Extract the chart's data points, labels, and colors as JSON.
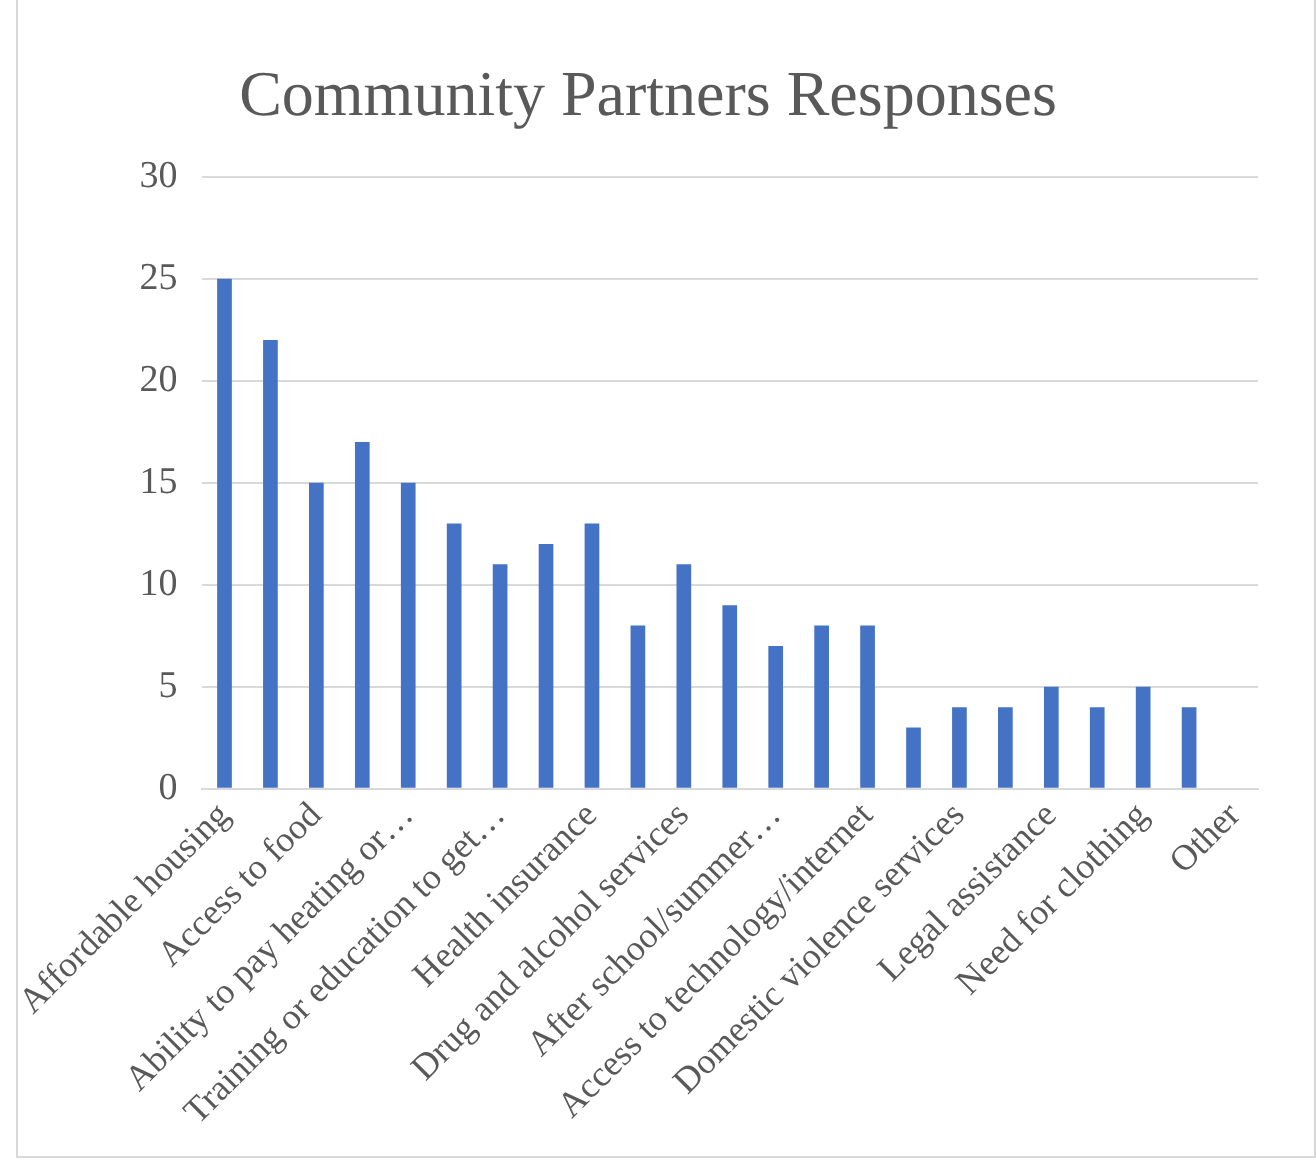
{
  "chart_data": {
    "type": "bar",
    "title": "Community Partners Responses",
    "categories": [
      "Affordable housing",
      null,
      "Access to food",
      null,
      "Ability to pay heating or…",
      null,
      "Training or education to get…",
      null,
      "Health insurance",
      null,
      "Drug and alcohol services",
      null,
      "After school/summer…",
      null,
      "Access to technology/internet",
      null,
      "Domestic violence services",
      null,
      "Legal assistance",
      null,
      "Need for clothing",
      null,
      "Other"
    ],
    "values": [
      25,
      22,
      15,
      17,
      15,
      13,
      11,
      12,
      13,
      8,
      11,
      9,
      7,
      8,
      8,
      3,
      4,
      4,
      5,
      4,
      5,
      4,
      0
    ],
    "color": "#4472c4",
    "ylim": [
      0,
      30
    ],
    "yticks": [
      0,
      5,
      10,
      15,
      20,
      25,
      30
    ],
    "grid": "y",
    "legend": false
  }
}
